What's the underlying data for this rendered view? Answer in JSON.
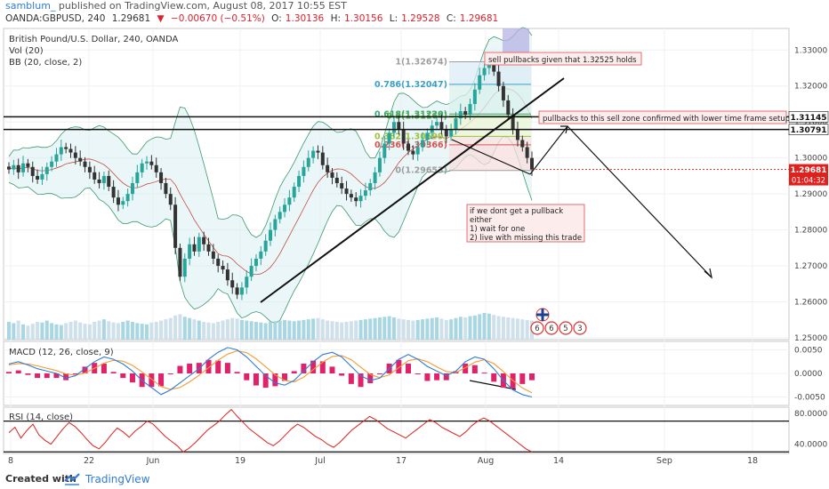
{
  "header": {
    "user": "samblum_",
    "published": "published on TradingView.com, August 08, 2017 10:55 EST"
  },
  "quote": {
    "symbol": "OANDA:GBPUSD, 240",
    "price": "1.29681",
    "change": "−0.00670 (−0.51%)",
    "open_label": "O:",
    "open": "1.30136",
    "high_label": "H:",
    "high": "1.30156",
    "low_label": "L:",
    "low": "1.29528",
    "close_label": "C:",
    "close": "1.29681"
  },
  "legend": {
    "title": "British Pound/U.S. Dollar, 240, OANDA",
    "vol": "Vol (20)",
    "bb": "BB (20, close, 2)",
    "macd": "MACD (12, 26, close, 9)",
    "rsi": "RSI (14, close)"
  },
  "annotations": {
    "sell_pullbacks": "sell pullbacks given that 1.32525 holds",
    "pullback_zone": "pullbacks to this sell zone confirmed with lower time frame setup",
    "no_pullback_1": "if we dont get a pullback",
    "no_pullback_2": "either",
    "no_pullback_3": "1) wait for one",
    "no_pullback_4": "2) live with missing this trade"
  },
  "fib_labels": [
    "1(1.32674)",
    "0.786(1.32047)",
    "0.618(1.31220)",
    "0.5(1.31164)",
    "0.382(1.30599)",
    "0.236(1.30366)",
    "0(1.29653)"
  ],
  "price_tags": {
    "level1": "1.31145",
    "level2": "1.30791",
    "last": "1.29681",
    "countdown": "01:04:32"
  },
  "events": [
    "6",
    "6",
    "5",
    "3"
  ],
  "footer": {
    "created_with": "Created with",
    "brand": "TradingView"
  },
  "colors": {
    "up": "#26a69a",
    "down": "#333333",
    "bb_fill": "#d8eef0",
    "macd_line": "#2f7bd8",
    "signal_line": "#f39c34",
    "hist": "#e0226b",
    "rsi": "#e0201c",
    "last_price": "#e0201c"
  },
  "chart_data": [
    {
      "type": "candlestick",
      "title": "British Pound/U.S. Dollar, 240, OANDA",
      "y_ticks": [
        "1.33000",
        "1.32000",
        "1.31000",
        "1.30000",
        "1.29000",
        "1.28000",
        "1.27000",
        "1.26000",
        "1.25000"
      ],
      "ylim": [
        1.2495,
        1.336
      ],
      "x_ticks": [
        "8",
        "22",
        "Jun",
        "19",
        "Jul",
        "17",
        "Aug",
        "14",
        "Sep",
        "18"
      ],
      "horizontal_levels": [
        1.31145,
        1.30791
      ],
      "close_series": [
        1.2968,
        1.298,
        1.296,
        1.2985,
        1.2975,
        1.295,
        1.294,
        1.2955,
        1.2975,
        1.299,
        1.301,
        1.303,
        1.3025,
        1.3015,
        1.3,
        1.299,
        1.2975,
        1.296,
        1.294,
        1.293,
        1.295,
        1.292,
        1.289,
        1.287,
        1.288,
        1.29,
        1.293,
        1.296,
        1.2985,
        1.299,
        1.298,
        1.296,
        1.293,
        1.29,
        1.287,
        1.275,
        1.267,
        1.272,
        1.276,
        1.274,
        1.278,
        1.276,
        1.274,
        1.272,
        1.27,
        1.269,
        1.266,
        1.264,
        1.262,
        1.264,
        1.267,
        1.27,
        1.272,
        1.274,
        1.277,
        1.28,
        1.283,
        1.285,
        1.287,
        1.289,
        1.292,
        1.295,
        1.2975,
        1.3,
        1.302,
        1.3015,
        1.298,
        1.296,
        1.2945,
        1.293,
        1.2915,
        1.29,
        1.289,
        1.288,
        1.2895,
        1.291,
        1.293,
        1.296,
        1.3,
        1.304,
        1.307,
        1.31,
        1.308,
        1.304,
        1.302,
        1.301,
        1.303,
        1.305,
        1.307,
        1.309,
        1.31,
        1.308,
        1.306,
        1.308,
        1.311,
        1.313,
        1.312,
        1.315,
        1.319,
        1.323,
        1.325,
        1.326,
        1.324,
        1.32,
        1.316,
        1.312,
        1.308,
        1.305,
        1.303,
        1.3,
        1.2968
      ],
      "volume": [
        28,
        26,
        30,
        24,
        22,
        25,
        28,
        27,
        30,
        26,
        24,
        23,
        26,
        28,
        30,
        27,
        25,
        24,
        28,
        30,
        32,
        29,
        27,
        26,
        28,
        30,
        28,
        26,
        25,
        24,
        27,
        28,
        30,
        32,
        34,
        38,
        40,
        36,
        34,
        32,
        30,
        28,
        27,
        26,
        28,
        30,
        32,
        34,
        33,
        31,
        30,
        29,
        28,
        27,
        26,
        28,
        29,
        30,
        31,
        30,
        29,
        30,
        31,
        32,
        33,
        34,
        32,
        30,
        29,
        28,
        27,
        28,
        29,
        30,
        31,
        32,
        33,
        34,
        35,
        36,
        37,
        35,
        33,
        32,
        31,
        30,
        31,
        32,
        33,
        34,
        35,
        33,
        31,
        32,
        34,
        36,
        35,
        37,
        38,
        40,
        42,
        41,
        39,
        37,
        36,
        35,
        34,
        33,
        32,
        31,
        30
      ],
      "fibonacci": [
        {
          "level": "1",
          "price": 1.32674
        },
        {
          "level": "0.786",
          "price": 1.32047
        },
        {
          "level": "0.618",
          "price": 1.3122
        },
        {
          "level": "0.5",
          "price": 1.31164
        },
        {
          "level": "0.382",
          "price": 1.30599
        },
        {
          "level": "0.236",
          "price": 1.30366
        },
        {
          "level": "0",
          "price": 1.29653
        }
      ],
      "last_price": 1.29681
    },
    {
      "type": "line",
      "title": "MACD (12, 26, close, 9)",
      "y_ticks": [
        "0.0050",
        "0.0000",
        "-0.0050"
      ],
      "ylim": [
        -0.0068,
        0.0068
      ],
      "series": [
        {
          "name": "MACD",
          "values": [
            0.002,
            0.0025,
            0.0018,
            0.001,
            0.0005,
            0.0,
            -0.001,
            -0.0005,
            0.001,
            0.0025,
            0.0035,
            0.003,
            0.002,
            0.0005,
            -0.0015,
            -0.003,
            -0.0045,
            -0.0035,
            -0.002,
            -0.0005,
            0.001,
            0.003,
            0.0045,
            0.0055,
            0.005,
            0.0035,
            0.0015,
            -0.0005,
            -0.002,
            -0.0025,
            -0.0015,
            0.0005,
            0.0025,
            0.004,
            0.0045,
            0.0035,
            0.0015,
            -0.0005,
            -0.0015,
            -0.001,
            0.001,
            0.003,
            0.004,
            0.003,
            0.0015,
            0.0005,
            -0.0005,
            0.0005,
            0.0025,
            0.0035,
            0.003,
            0.001,
            -0.0015,
            -0.0035,
            -0.0045,
            -0.005
          ]
        },
        {
          "name": "Signal",
          "values": [
            0.0018,
            0.0021,
            0.002,
            0.0016,
            0.0011,
            0.0006,
            -0.0001,
            -0.0004,
            0.0001,
            0.0011,
            0.0022,
            0.0028,
            0.0026,
            0.0017,
            0.0003,
            -0.0012,
            -0.0028,
            -0.0034,
            -0.003,
            -0.0018,
            -0.0004,
            0.0012,
            0.0028,
            0.0041,
            0.0048,
            0.0044,
            0.0031,
            0.0014,
            -0.0003,
            -0.0015,
            -0.0018,
            -0.0008,
            0.0008,
            0.0024,
            0.0036,
            0.0038,
            0.0029,
            0.0013,
            -0.0002,
            -0.0009,
            -0.0003,
            0.0012,
            0.0027,
            0.0031,
            0.0025,
            0.0014,
            0.0004,
            0.0002,
            0.0012,
            0.0024,
            0.0029,
            0.0021,
            0.0004,
            -0.0015,
            -0.0031,
            -0.0041
          ]
        }
      ]
    },
    {
      "type": "line",
      "title": "RSI (14, close)",
      "y_ticks": [
        "80.0000",
        "40.0000"
      ],
      "ylim": [
        28,
        88
      ],
      "horizontal_levels": [
        70,
        30
      ],
      "series": [
        {
          "name": "RSI",
          "values": [
            55,
            62,
            48,
            58,
            66,
            52,
            45,
            40,
            50,
            60,
            68,
            63,
            55,
            46,
            38,
            34,
            42,
            52,
            61,
            56,
            49,
            57,
            63,
            70,
            66,
            58,
            50,
            44,
            38,
            30,
            35,
            42,
            50,
            58,
            64,
            70,
            78,
            85,
            76,
            68,
            60,
            54,
            48,
            42,
            38,
            44,
            52,
            60,
            66,
            62,
            56,
            50,
            46,
            40,
            36,
            42,
            50,
            58,
            64,
            70,
            76,
            72,
            66,
            60,
            56,
            52,
            48,
            54,
            60,
            66,
            72,
            68,
            62,
            58,
            54,
            50,
            56,
            64,
            70,
            74,
            70,
            64,
            58,
            52,
            46,
            40,
            34,
            30
          ]
        }
      ]
    }
  ]
}
